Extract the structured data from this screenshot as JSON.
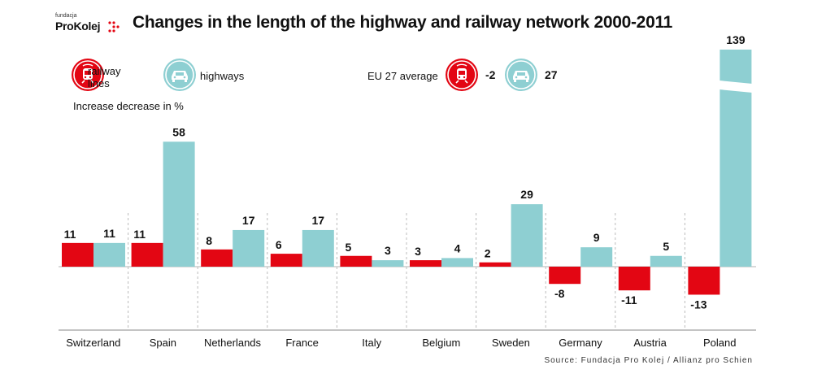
{
  "brand": {
    "small": "fundacja",
    "name": "ProKolej"
  },
  "title": "Changes in the length of the highway and railway network 2000-2011",
  "legend": {
    "railway_label": "railway\nlines",
    "highway_label": "highways",
    "subtitle": "Increase decrease in %",
    "eu_label": "EU 27 average",
    "eu_railway": "-2",
    "eu_highway": "27"
  },
  "source": "Source: Fundacja Pro Kolej / Allianz pro Schien",
  "colors": {
    "railway": "#e30613",
    "highway": "#8ecfd2"
  },
  "icons": {
    "railway": "train-icon",
    "highway": "car-icon"
  },
  "chart_data": {
    "type": "bar",
    "categories": [
      "Switzerland",
      "Spain",
      "Netherlands",
      "France",
      "Italy",
      "Belgium",
      "Sweden",
      "Germany",
      "Austria",
      "Poland"
    ],
    "series": [
      {
        "name": "railway lines",
        "values": [
          11,
          11,
          8,
          6,
          5,
          3,
          2,
          -8,
          -11,
          -13
        ]
      },
      {
        "name": "highways",
        "values": [
          11,
          58,
          17,
          17,
          3,
          4,
          29,
          9,
          5,
          139
        ]
      }
    ],
    "axis_break": true,
    "title": "Changes in the length of the highway and railway network 2000-2011",
    "xlabel": "",
    "ylabel": "Increase decrease in %"
  }
}
